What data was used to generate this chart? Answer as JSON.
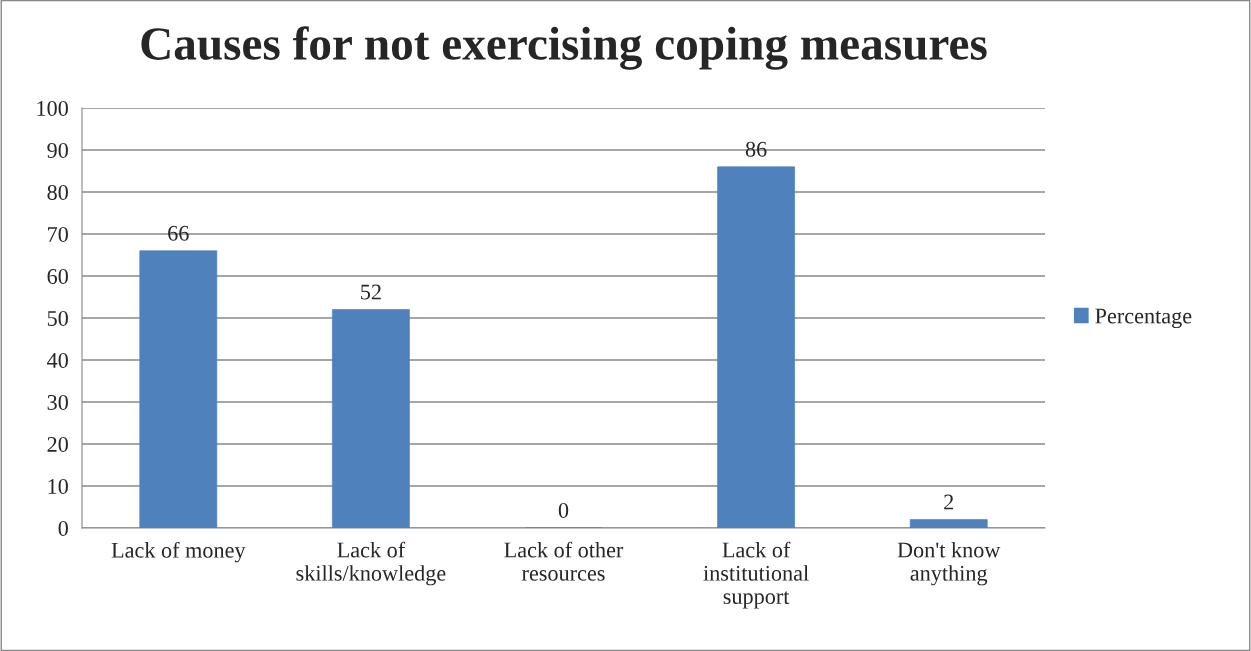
{
  "chart_data": {
    "type": "bar",
    "title": "Causes for not exercising coping measures",
    "categories": [
      "Lack of money",
      "Lack of\nskills/knowledge",
      "Lack of other\nresources",
      "Lack of\ninstitutional\nsupport",
      "Don't know\nanything"
    ],
    "series": [
      {
        "name": "Percentage",
        "color": "#4f81bd",
        "values": [
          66,
          52,
          0,
          86,
          2
        ]
      }
    ],
    "ylim": [
      0,
      100
    ],
    "yticks": [
      0,
      10,
      20,
      30,
      40,
      50,
      60,
      70,
      80,
      90,
      100
    ],
    "grid": "y",
    "legend": "right",
    "data_labels": true
  }
}
